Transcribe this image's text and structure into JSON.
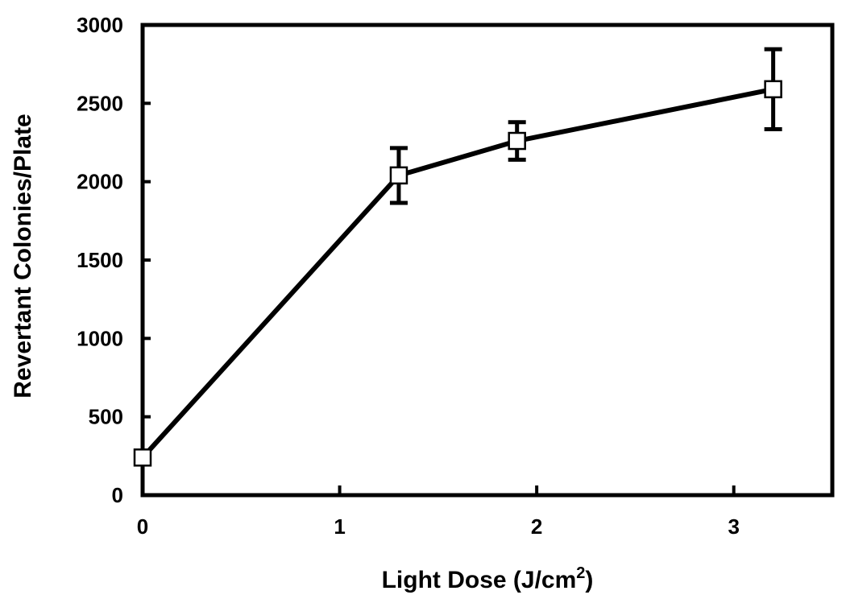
{
  "chart_data": {
    "type": "line",
    "title": "",
    "xlabel": "Light Dose (J/cm",
    "xlabel_sup": "2",
    "xlabel_close": ")",
    "ylabel": "Revertant Colonies/Plate",
    "xlim": [
      0,
      3.5
    ],
    "ylim": [
      0,
      3000
    ],
    "xticks": [
      0,
      1,
      2,
      3
    ],
    "yticks": [
      0,
      500,
      1000,
      1500,
      2000,
      2500,
      3000
    ],
    "grid": false,
    "legend": "none",
    "series": [
      {
        "x": [
          0,
          1.3,
          1.9,
          3.2
        ],
        "y": [
          240,
          2040,
          2260,
          2590
        ],
        "error": [
          30,
          175,
          120,
          255
        ],
        "marker": "open-square",
        "color": "#000000"
      }
    ]
  }
}
